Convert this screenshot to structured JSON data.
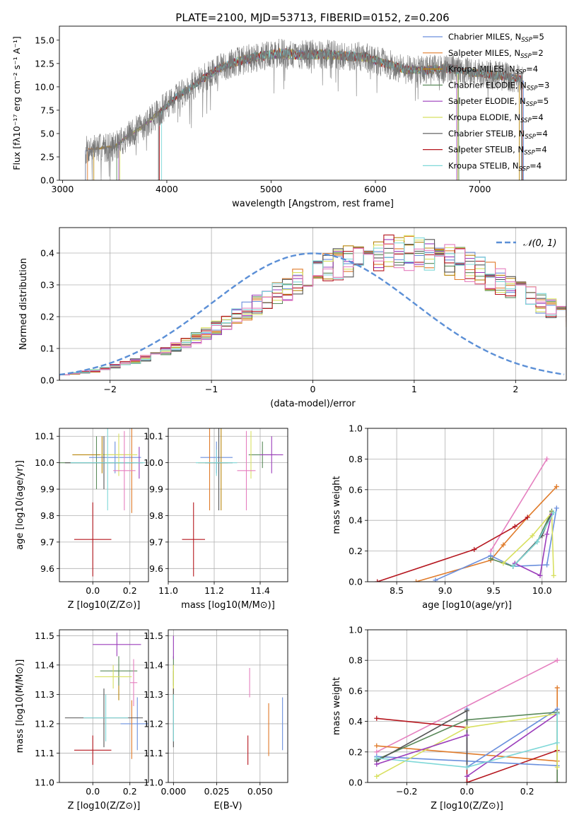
{
  "title": "PLATE=2100, MJD=53713, FIBERID=0152, z=0.206",
  "colors": {
    "Chabrier MILES": "#6a8fdd",
    "Salpeter MILES": "#e07b2a",
    "Kroupa MILES": "#b8860b",
    "Chabrier ELODIE": "#5a8a5a",
    "Salpeter ELODIE": "#9b3dbb",
    "Kroupa ELODIE": "#d8e060",
    "Chabrier STELIB": "#555555",
    "Salpeter STELIB": "#b5161e",
    "Kroupa STELIB": "#7fd8d8",
    "pink": "#e57fbf",
    "gaussian": "#5b8fd6"
  },
  "chart_data": [
    {
      "type": "line",
      "id": "spectrum",
      "xlabel": "wavelength [Angstrom, rest frame]",
      "ylabel": "Flux [f_λ10^-17 erg cm^-2 s^-1 A^-1]",
      "xlim": [
        2970,
        7830
      ],
      "ylim": [
        0,
        16.5
      ],
      "xticks": [
        3000,
        4000,
        5000,
        6000,
        7000
      ],
      "yticks": [
        0.0,
        2.5,
        5.0,
        7.5,
        10.0,
        12.5,
        15.0
      ],
      "legend_position": "top-right",
      "legend": [
        {
          "label": "Chabrier MILES, N_SSP=5",
          "color": "#6a8fdd"
        },
        {
          "label": "Salpeter MILES, N_SSP=2",
          "color": "#e07b2a"
        },
        {
          "label": "Kroupa MILES, N_SSP=4",
          "color": "#b8860b"
        },
        {
          "label": "Chabrier ELODIE, N_SSP=3",
          "color": "#5a8a5a"
        },
        {
          "label": "Salpeter ELODIE, N_SSP=5",
          "color": "#9b3dbb"
        },
        {
          "label": "Kroupa ELODIE, N_SSP=4",
          "color": "#d8e060"
        },
        {
          "label": "Chabrier STELIB, N_SSP=4",
          "color": "#555555"
        },
        {
          "label": "Salpeter STELIB, N_SSP=4",
          "color": "#b5161e"
        },
        {
          "label": "Kroupa STELIB, N_SSP=4",
          "color": "#7fd8d8"
        }
      ],
      "continuum_knots": {
        "x": [
          3220,
          3300,
          3500,
          3600,
          3800,
          3950,
          4100,
          4300,
          4500,
          4700,
          4900,
          5100,
          5300,
          5500,
          5700,
          5900,
          6100,
          6300,
          6500,
          6700,
          6900,
          7100,
          7300,
          7420
        ],
        "y": [
          3.2,
          3.4,
          3.6,
          4.5,
          6.0,
          7.5,
          9.0,
          10.5,
          12.0,
          12.8,
          13.3,
          13.6,
          13.4,
          13.5,
          13.3,
          13.2,
          12.5,
          11.8,
          11.8,
          12.0,
          11.6,
          11.3,
          11.0,
          10.8
        ]
      },
      "model_starts": [
        3220,
        3240,
        3300,
        3520,
        3540,
        3550,
        3920,
        3930,
        3950
      ],
      "model_ends": [
        7420,
        7400,
        7380,
        6800,
        6780,
        6790,
        7410,
        7405,
        7400
      ]
    },
    {
      "type": "line",
      "id": "residuals",
      "xlabel": "(data-model)/error",
      "ylabel": "Normed distribution",
      "xlim": [
        -2.5,
        2.5
      ],
      "ylim": [
        0,
        0.48
      ],
      "xticks": [
        -2,
        -1,
        0,
        1,
        2
      ],
      "xtick_labels": [
        "−2",
        "−1",
        "0",
        "1",
        "2"
      ],
      "yticks": [
        0.0,
        0.1,
        0.2,
        0.3,
        0.4
      ],
      "legend": [
        {
          "label": "𝒩(0, 1)",
          "color": "#5b8fd6"
        }
      ],
      "bin_width": 0.1,
      "bin_start": -2.5,
      "base_counts": [
        0.018,
        0.022,
        0.026,
        0.03,
        0.036,
        0.044,
        0.052,
        0.06,
        0.07,
        0.08,
        0.092,
        0.105,
        0.118,
        0.132,
        0.148,
        0.165,
        0.182,
        0.2,
        0.218,
        0.236,
        0.255,
        0.272,
        0.29,
        0.308,
        0.323,
        0.338,
        0.352,
        0.365,
        0.376,
        0.385,
        0.393,
        0.398,
        0.401,
        0.402,
        0.401,
        0.398,
        0.393,
        0.386,
        0.377,
        0.367,
        0.355,
        0.342,
        0.327,
        0.312,
        0.296,
        0.279,
        0.262,
        0.244,
        0.226,
        0.208,
        0.19,
        0.173,
        0.156,
        0.14,
        0.125,
        0.111,
        0.098,
        0.086,
        0.075,
        0.065,
        0.056,
        0.048,
        0.041,
        0.035,
        0.03,
        0.026,
        0.022,
        0.019,
        0.017,
        0.015
      ]
    },
    {
      "type": "scatter",
      "id": "age-vs-Z",
      "xlabel": "Z [log10(Z/Z⊙)]",
      "ylabel": "age [log10(age/yr)]",
      "xlim": [
        -0.18,
        0.3
      ],
      "ylim": [
        9.55,
        10.13
      ],
      "xticks": [
        0.0,
        0.2
      ],
      "yticks": [
        9.6,
        9.7,
        9.8,
        9.9,
        10.0,
        10.1
      ],
      "points": [
        {
          "color": "#6a8fdd",
          "x": 0.12,
          "xerr": 0.14,
          "y": 10.02,
          "yerr": 0.06
        },
        {
          "color": "#e07b2a",
          "x": 0.21,
          "xerr": 0.0,
          "y": 10.01,
          "yerr": 0.2
        },
        {
          "color": "#b8860b",
          "x": 0.05,
          "xerr": 0.16,
          "y": 10.03,
          "yerr": 0.07
        },
        {
          "color": "#5a8a5a",
          "x": 0.02,
          "xerr": 0.2,
          "y": 10.0,
          "yerr": 0.1
        },
        {
          "color": "#9b3dbb",
          "x": 0.25,
          "xerr": 0.0,
          "y": 10.0,
          "yerr": 0.06
        },
        {
          "color": "#d8e060",
          "x": 0.14,
          "xerr": 0.1,
          "y": 10.03,
          "yerr": 0.08
        },
        {
          "color": "#555555",
          "x": 0.06,
          "xerr": 0.21,
          "y": 10.0,
          "yerr": 0.1
        },
        {
          "color": "#b5161e",
          "x": 0.0,
          "xerr": 0.1,
          "y": 9.71,
          "yerr": 0.14
        },
        {
          "color": "#7fd8d8",
          "x": 0.08,
          "xerr": 0.2,
          "y": 10.0,
          "yerr": 0.18
        },
        {
          "color": "#e57fbf",
          "x": 0.17,
          "xerr": 0.06,
          "y": 9.97,
          "yerr": 0.15
        }
      ]
    },
    {
      "type": "scatter",
      "id": "age-vs-mass",
      "xlabel": "mass [log10(M/M⊙)]",
      "ylabel": "",
      "xlim": [
        11.0,
        11.52
      ],
      "ylim": [
        9.55,
        10.13
      ],
      "xticks": [
        11.0,
        11.2,
        11.4
      ],
      "yticks": [
        9.6,
        9.7,
        9.8,
        9.9,
        10.0,
        10.1
      ],
      "points": [
        {
          "color": "#6a8fdd",
          "x": 11.21,
          "xerr": 0.07,
          "y": 10.02,
          "yerr": 0.06
        },
        {
          "color": "#e07b2a",
          "x": 11.18,
          "xerr": 0.05,
          "y": 10.0,
          "yerr": 0.18
        },
        {
          "color": "#b8860b",
          "x": 11.23,
          "xerr": 0.03,
          "y": 10.0,
          "yerr": 0.18
        },
        {
          "color": "#5a8a5a",
          "x": 11.41,
          "xerr": 0.06,
          "y": 10.03,
          "yerr": 0.05
        },
        {
          "color": "#9b3dbb",
          "x": 11.45,
          "xerr": 0.05,
          "y": 10.03,
          "yerr": 0.07
        },
        {
          "color": "#d8e060",
          "x": 11.36,
          "xerr": 0.0,
          "y": 10.03,
          "yerr": 0.09
        },
        {
          "color": "#555555",
          "x": 11.22,
          "xerr": 0.06,
          "y": 10.0,
          "yerr": 0.18
        },
        {
          "color": "#b5161e",
          "x": 11.11,
          "xerr": 0.05,
          "y": 9.71,
          "yerr": 0.14
        },
        {
          "color": "#7fd8d8",
          "x": 11.21,
          "xerr": 0.09,
          "y": 10.0,
          "yerr": 0.05
        },
        {
          "color": "#e57fbf",
          "x": 11.34,
          "xerr": 0.04,
          "y": 9.97,
          "yerr": 0.15
        }
      ]
    },
    {
      "type": "line",
      "id": "massweight-vs-age",
      "xlabel": "age [log10(age/yr)]",
      "ylabel": "mass weight",
      "xlim": [
        8.2,
        10.25
      ],
      "ylim": [
        0.0,
        1.0
      ],
      "xticks": [
        8.5,
        9.0,
        9.5,
        10.0
      ],
      "yticks": [
        0.0,
        0.2,
        0.4,
        0.6,
        0.8,
        1.0
      ],
      "series": [
        {
          "color": "#e57fbf",
          "x": [
            9.47,
            10.05
          ],
          "y": [
            0.2,
            0.8
          ]
        },
        {
          "color": "#e07b2a",
          "x": [
            8.7,
            9.47,
            9.6,
            9.85,
            10.15
          ],
          "y": [
            0.0,
            0.14,
            0.24,
            0.42,
            0.62
          ]
        },
        {
          "color": "#b5161e",
          "x": [
            8.3,
            9.3,
            9.72,
            9.85
          ],
          "y": [
            0.0,
            0.21,
            0.36,
            0.42
          ]
        },
        {
          "color": "#6a8fdd",
          "x": [
            8.9,
            9.47,
            9.7,
            10.05,
            10.15
          ],
          "y": [
            0.01,
            0.17,
            0.1,
            0.11,
            0.48
          ]
        },
        {
          "color": "#5a8a5a",
          "x": [
            9.47,
            9.7,
            9.95,
            10.1
          ],
          "y": [
            0.15,
            0.1,
            0.26,
            0.46
          ]
        },
        {
          "color": "#555555",
          "x": [
            9.7,
            10.0,
            10.1
          ],
          "y": [
            0.1,
            0.3,
            0.45
          ]
        },
        {
          "color": "#d8e060",
          "x": [
            9.6,
            9.9,
            10.1,
            10.12
          ],
          "y": [
            0.12,
            0.3,
            0.45,
            0.04
          ]
        },
        {
          "color": "#9b3dbb",
          "x": [
            9.72,
            9.98,
            10.05,
            10.1
          ],
          "y": [
            0.12,
            0.04,
            0.31,
            0.44
          ]
        },
        {
          "color": "#7fd8d8",
          "x": [
            9.7,
            9.95,
            10.12
          ],
          "y": [
            0.1,
            0.26,
            0.45
          ]
        }
      ]
    },
    {
      "type": "scatter",
      "id": "mass-vs-Z",
      "xlabel": "Z [log10(Z/Z⊙)]",
      "ylabel": "mass [log10(M/M⊙)]",
      "xlim": [
        -0.18,
        0.3
      ],
      "ylim": [
        11.0,
        11.52
      ],
      "xticks": [
        0.0,
        0.2
      ],
      "yticks": [
        11.0,
        11.1,
        11.2,
        11.3,
        11.4,
        11.5
      ],
      "points": [
        {
          "color": "#6a8fdd",
          "x": 0.24,
          "xerr": 0.09,
          "y": 11.2,
          "yerr": 0.09
        },
        {
          "color": "#e07b2a",
          "x": 0.21,
          "xerr": 0.0,
          "y": 11.18,
          "yerr": 0.1
        },
        {
          "color": "#b8860b",
          "x": 0.14,
          "xerr": 0.0,
          "y": 11.33,
          "yerr": 0.05
        },
        {
          "color": "#5a8a5a",
          "x": 0.14,
          "xerr": 0.1,
          "y": 11.38,
          "yerr": 0.05
        },
        {
          "color": "#9b3dbb",
          "x": 0.13,
          "xerr": 0.13,
          "y": 11.47,
          "yerr": 0.04
        },
        {
          "color": "#d8e060",
          "x": 0.11,
          "xerr": 0.1,
          "y": 11.36,
          "yerr": 0.04
        },
        {
          "color": "#555555",
          "x": 0.06,
          "xerr": 0.21,
          "y": 11.22,
          "yerr": 0.1
        },
        {
          "color": "#b5161e",
          "x": 0.0,
          "xerr": 0.1,
          "y": 11.11,
          "yerr": 0.05
        },
        {
          "color": "#7fd8d8",
          "x": 0.07,
          "xerr": 0.12,
          "y": 11.22,
          "yerr": 0.08
        },
        {
          "color": "#e57fbf",
          "x": 0.22,
          "xerr": 0.02,
          "y": 11.34,
          "yerr": 0.08
        }
      ]
    },
    {
      "type": "scatter",
      "id": "mass-vs-EBV",
      "xlabel": "E(B-V)",
      "ylabel": "",
      "xlim": [
        -0.003,
        0.066
      ],
      "ylim": [
        11.0,
        11.52
      ],
      "xticks": [
        0.0,
        0.025,
        0.05
      ],
      "xtick_labels": [
        "0.000",
        "0.025",
        "0.050"
      ],
      "yticks": [
        11.0,
        11.1,
        11.2,
        11.3,
        11.4,
        11.5
      ],
      "points": [
        {
          "color": "#6a8fdd",
          "x": 0.063,
          "xerr": 0.0,
          "y": 11.2,
          "yerr": 0.09
        },
        {
          "color": "#e07b2a",
          "x": 0.055,
          "xerr": 0.0,
          "y": 11.18,
          "yerr": 0.09
        },
        {
          "color": "#b8860b",
          "x": 0.0,
          "xerr": 0.0,
          "y": 11.33,
          "yerr": 0.05
        },
        {
          "color": "#5a8a5a",
          "x": 0.0,
          "xerr": 0.0,
          "y": 11.38,
          "yerr": 0.05
        },
        {
          "color": "#9b3dbb",
          "x": 0.0,
          "xerr": 0.0,
          "y": 11.46,
          "yerr": 0.04
        },
        {
          "color": "#d8e060",
          "x": 0.0,
          "xerr": 0.0,
          "y": 11.36,
          "yerr": 0.04
        },
        {
          "color": "#555555",
          "x": 0.0,
          "xerr": 0.0,
          "y": 11.22,
          "yerr": 0.1
        },
        {
          "color": "#b5161e",
          "x": 0.043,
          "xerr": 0.0,
          "y": 11.11,
          "yerr": 0.05
        },
        {
          "color": "#7fd8d8",
          "x": 0.0,
          "xerr": 0.0,
          "y": 11.22,
          "yerr": 0.08
        },
        {
          "color": "#e57fbf",
          "x": 0.044,
          "xerr": 0.0,
          "y": 11.34,
          "yerr": 0.05
        }
      ]
    },
    {
      "type": "line",
      "id": "massweight-vs-Z",
      "xlabel": "Z [log10(Z/Z⊙)]",
      "ylabel": "mass weight",
      "xlim": [
        -0.33,
        0.33
      ],
      "ylim": [
        0.0,
        1.0
      ],
      "xticks": [
        -0.2,
        0.0,
        0.2
      ],
      "xtick_labels": [
        "−0.2",
        "0.0",
        "0.2"
      ],
      "yticks": [
        0.0,
        0.2,
        0.4,
        0.6,
        0.8,
        1.0
      ],
      "series": [
        {
          "color": "#e57fbf",
          "x": [
            -0.3,
            0.3
          ],
          "y": [
            0.2,
            0.8
          ]
        },
        {
          "color": "#e07b2a",
          "x": [
            -0.3,
            0.3,
            0.3
          ],
          "y": [
            0.24,
            0.14,
            0.62
          ]
        },
        {
          "color": "#b5161e",
          "x": [
            -0.3,
            0.0,
            0.0,
            0.3,
            0.3
          ],
          "y": [
            0.42,
            0.36,
            0.0,
            0.21,
            0.0
          ]
        },
        {
          "color": "#6a8fdd",
          "x": [
            -0.3,
            0.3,
            0.3,
            0.0,
            0.0
          ],
          "y": [
            0.17,
            0.11,
            0.48,
            0.1,
            0.48
          ]
        },
        {
          "color": "#5a8a5a",
          "x": [
            -0.3,
            0.0,
            0.3,
            0.3
          ],
          "y": [
            0.15,
            0.41,
            0.46,
            0.0
          ]
        },
        {
          "color": "#555555",
          "x": [
            -0.3,
            0.0,
            0.0
          ],
          "y": [
            0.14,
            0.47,
            0.1
          ]
        },
        {
          "color": "#d8e060",
          "x": [
            -0.3,
            0.0,
            0.3,
            0.3
          ],
          "y": [
            0.04,
            0.36,
            0.45,
            0.1
          ]
        },
        {
          "color": "#9b3dbb",
          "x": [
            0.0,
            0.3
          ],
          "y": [
            0.04,
            0.45
          ]
        },
        {
          "color": "#7fd8d8",
          "x": [
            -0.3,
            0.0,
            0.3,
            0.3
          ],
          "y": [
            0.16,
            0.1,
            0.26,
            0.45
          ]
        },
        {
          "color": "#9b3dbb",
          "x": [
            -0.3,
            0.0
          ],
          "y": [
            0.12,
            0.31
          ]
        }
      ]
    }
  ]
}
